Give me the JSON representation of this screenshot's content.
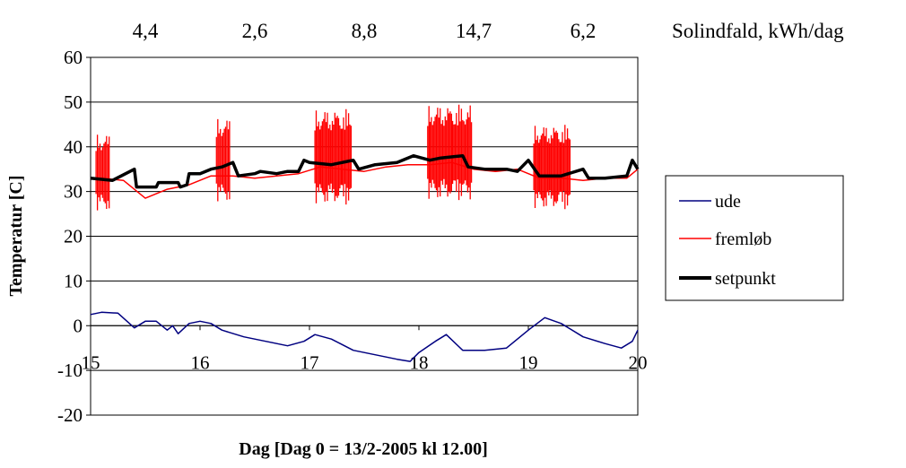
{
  "chart_data": {
    "type": "line",
    "title": "",
    "xlabel": "Dag [Dag 0 = 13/2-2005 kl 12.00]",
    "ylabel": "Temperatur [C]",
    "xlim": [
      15,
      20
    ],
    "ylim": [
      -20,
      60
    ],
    "xticks": [
      "15",
      "16",
      "17",
      "18",
      "19",
      "20"
    ],
    "yticks": [
      "60",
      "50",
      "40",
      "30",
      "20",
      "10",
      "0",
      "-10",
      "-20"
    ],
    "grid": "horizontal",
    "legend": "right",
    "top_annotation": {
      "label": "Solindfald, kWh/dag",
      "values": [
        "4,4",
        "2,6",
        "8,8",
        "14,7",
        "6,2"
      ]
    },
    "series": [
      {
        "name": "ude",
        "color": "#000080",
        "x": [
          15.0,
          15.1,
          15.25,
          15.4,
          15.5,
          15.6,
          15.7,
          15.75,
          15.8,
          15.9,
          16.0,
          16.1,
          16.2,
          16.4,
          16.6,
          16.8,
          16.95,
          17.05,
          17.2,
          17.4,
          17.6,
          17.8,
          17.92,
          18.0,
          18.15,
          18.25,
          18.4,
          18.6,
          18.8,
          19.0,
          19.15,
          19.3,
          19.5,
          19.7,
          19.85,
          19.95,
          20.0
        ],
        "y": [
          2.5,
          3.0,
          2.8,
          -0.5,
          1.0,
          1.0,
          -1.0,
          0.0,
          -1.8,
          0.5,
          1.0,
          0.5,
          -1.0,
          -2.5,
          -3.5,
          -4.5,
          -3.5,
          -2.0,
          -3.0,
          -5.5,
          -6.5,
          -7.5,
          -8.0,
          -6.0,
          -3.5,
          -2.0,
          -5.5,
          -5.5,
          -5.0,
          -1.0,
          1.8,
          0.5,
          -2.5,
          -4.0,
          -5.0,
          -3.5,
          -1.0
        ]
      },
      {
        "name": "fremløb",
        "color": "#ff0000",
        "x": [
          15.0,
          15.1,
          15.3,
          15.5,
          15.7,
          15.9,
          16.1,
          16.3,
          16.5,
          16.7,
          16.9,
          17.1,
          17.3,
          17.5,
          17.7,
          17.9,
          18.1,
          18.3,
          18.5,
          18.7,
          18.9,
          19.1,
          19.3,
          19.5,
          19.7,
          19.9,
          20.0
        ],
        "y": [
          33.0,
          33.0,
          32.5,
          28.5,
          30.5,
          31.5,
          33.5,
          33.5,
          33.0,
          33.5,
          34.0,
          35.5,
          35.0,
          34.5,
          35.5,
          36.0,
          36.0,
          36.5,
          35.0,
          34.5,
          35.0,
          33.0,
          33.0,
          32.5,
          33.0,
          33.0,
          35.0
        ],
        "oscillations": [
          {
            "from": 15.05,
            "to": 15.17,
            "min": 25.5,
            "max": 43.0
          },
          {
            "from": 16.15,
            "to": 16.27,
            "min": 27.5,
            "max": 46.5
          },
          {
            "from": 17.05,
            "to": 17.38,
            "min": 27.0,
            "max": 48.5
          },
          {
            "from": 18.08,
            "to": 18.48,
            "min": 28.0,
            "max": 49.5
          },
          {
            "from": 19.05,
            "to": 19.38,
            "min": 26.0,
            "max": 45.0
          }
        ]
      },
      {
        "name": "setpunkt",
        "color": "#000000",
        "x": [
          15.0,
          15.2,
          15.4,
          15.42,
          15.6,
          15.62,
          15.8,
          15.82,
          15.88,
          15.9,
          16.0,
          16.1,
          16.2,
          16.3,
          16.35,
          16.5,
          16.55,
          16.7,
          16.8,
          16.9,
          16.95,
          17.0,
          17.2,
          17.4,
          17.45,
          17.6,
          17.8,
          17.95,
          18.1,
          18.2,
          18.4,
          18.45,
          18.6,
          18.8,
          18.9,
          19.0,
          19.1,
          19.3,
          19.5,
          19.55,
          19.7,
          19.9,
          19.95,
          20.0
        ],
        "y": [
          33.0,
          32.5,
          35.0,
          31.0,
          31.0,
          32.0,
          32.0,
          31.0,
          31.5,
          34.0,
          34.0,
          35.0,
          35.5,
          36.5,
          33.5,
          34.0,
          34.5,
          34.0,
          34.5,
          34.5,
          37.0,
          36.5,
          36.0,
          37.0,
          35.0,
          36.0,
          36.5,
          38.0,
          37.0,
          37.5,
          38.0,
          35.5,
          35.0,
          35.0,
          34.5,
          37.0,
          33.5,
          33.5,
          35.0,
          33.0,
          33.0,
          33.5,
          37.0,
          35.0
        ]
      }
    ]
  }
}
